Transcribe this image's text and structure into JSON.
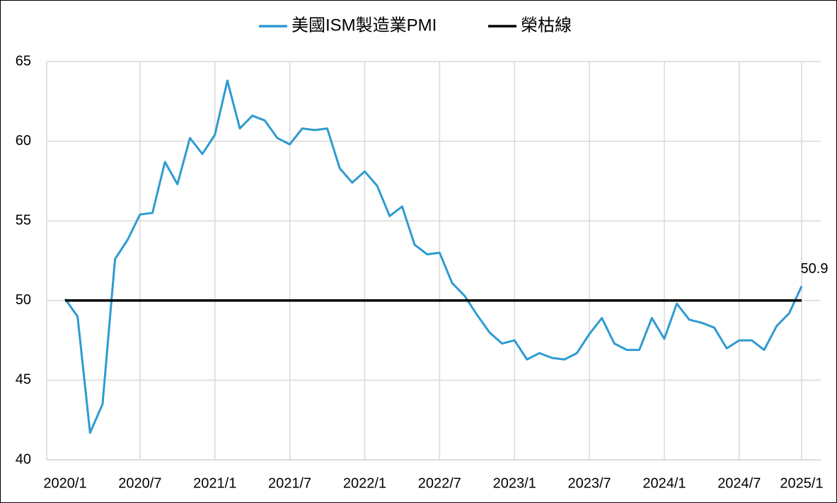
{
  "chart_data": {
    "type": "line",
    "categories": [
      "2020/1",
      null,
      null,
      null,
      null,
      null,
      "2020/7",
      null,
      null,
      null,
      null,
      null,
      "2021/1",
      null,
      null,
      null,
      null,
      null,
      "2021/7",
      null,
      null,
      null,
      null,
      null,
      "2022/1",
      null,
      null,
      null,
      null,
      null,
      "2022/7",
      null,
      null,
      null,
      null,
      null,
      "2023/1",
      null,
      null,
      null,
      null,
      null,
      "2023/7",
      null,
      null,
      null,
      null,
      null,
      "2024/1",
      null,
      null,
      null,
      null,
      null,
      "2024/7",
      null,
      null,
      null,
      null,
      "2025/1"
    ],
    "series": [
      {
        "name": "美國ISM製造業PMI",
        "color": "#2e9bd1",
        "values": [
          50.1,
          49.0,
          41.7,
          43.5,
          52.6,
          53.8,
          55.4,
          55.5,
          58.7,
          57.3,
          60.2,
          59.2,
          60.4,
          63.8,
          60.8,
          61.6,
          61.3,
          60.2,
          59.8,
          60.8,
          60.7,
          60.8,
          58.3,
          57.4,
          58.1,
          57.2,
          55.3,
          55.9,
          53.5,
          52.9,
          53.0,
          51.1,
          50.3,
          49.1,
          48.0,
          47.3,
          47.5,
          46.3,
          46.7,
          46.4,
          46.3,
          46.7,
          47.9,
          48.9,
          47.3,
          46.9,
          46.9,
          48.9,
          47.6,
          49.8,
          48.8,
          48.6,
          48.3,
          47.0,
          47.5,
          47.5,
          46.9,
          48.4,
          49.2,
          50.9
        ]
      },
      {
        "name": "榮枯線",
        "color": "#000000",
        "values": [
          50,
          50,
          50,
          50,
          50,
          50,
          50,
          50,
          50,
          50,
          50,
          50,
          50,
          50,
          50,
          50,
          50,
          50,
          50,
          50,
          50,
          50,
          50,
          50,
          50,
          50,
          50,
          50,
          50,
          50,
          50,
          50,
          50,
          50,
          50,
          50,
          50,
          50,
          50,
          50,
          50,
          50,
          50,
          50,
          50,
          50,
          50,
          50,
          50,
          50,
          50,
          50,
          50,
          50,
          50,
          50,
          50,
          50,
          50,
          50
        ]
      }
    ],
    "ylim": [
      40,
      65
    ],
    "yticks": [
      40,
      45,
      50,
      55,
      60,
      65
    ],
    "grid": true,
    "legend": "top"
  }
}
